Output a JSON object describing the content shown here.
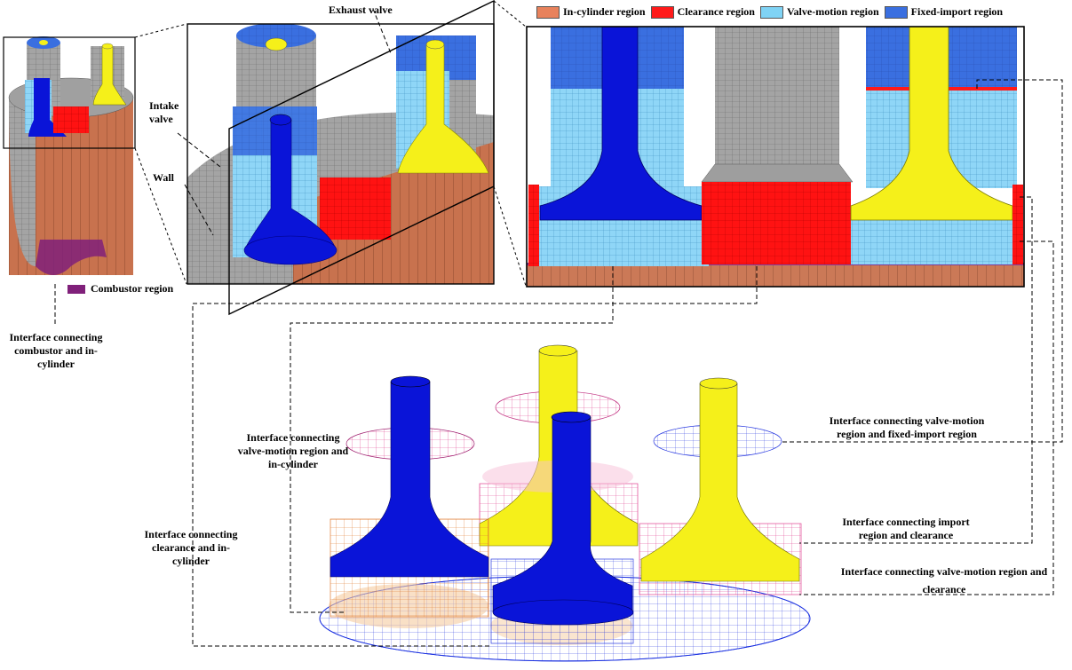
{
  "legend": {
    "items": [
      {
        "label": "In-cylinder region",
        "color": "#e8825c"
      },
      {
        "label": "Clearance region",
        "color": "#ff1a1a"
      },
      {
        "label": "Valve-motion region",
        "color": "#7fd3f5"
      },
      {
        "label": "Fixed-import region",
        "color": "#3a6fe0"
      }
    ]
  },
  "combustor_legend": {
    "label": "Combustor region",
    "color": "#80207a"
  },
  "labels": {
    "exhaust_valve": "Exhaust  valve",
    "intake_valve": "Intake valve",
    "wall": "Wall",
    "iface_combustor": "Interface connecting combustor  and in-cylinder",
    "iface_valve_incyl": "Interface connecting valve-motion region and in-cylinder",
    "iface_clear_incyl": "Interface connecting clearance and in-cylinder",
    "iface_valve_fixed": "Interface connecting valve-motion region and fixed-import region",
    "iface_import_clear": "Interface connecting import region and clearance",
    "iface_valve_clear": "Interface connecting valve-motion region and clearance"
  },
  "colors": {
    "yellow_valve": "#f5f01a",
    "blue_valve": "#0a14d8",
    "wall_gray": "#a0a0a0",
    "incyl": "#c8724e"
  }
}
